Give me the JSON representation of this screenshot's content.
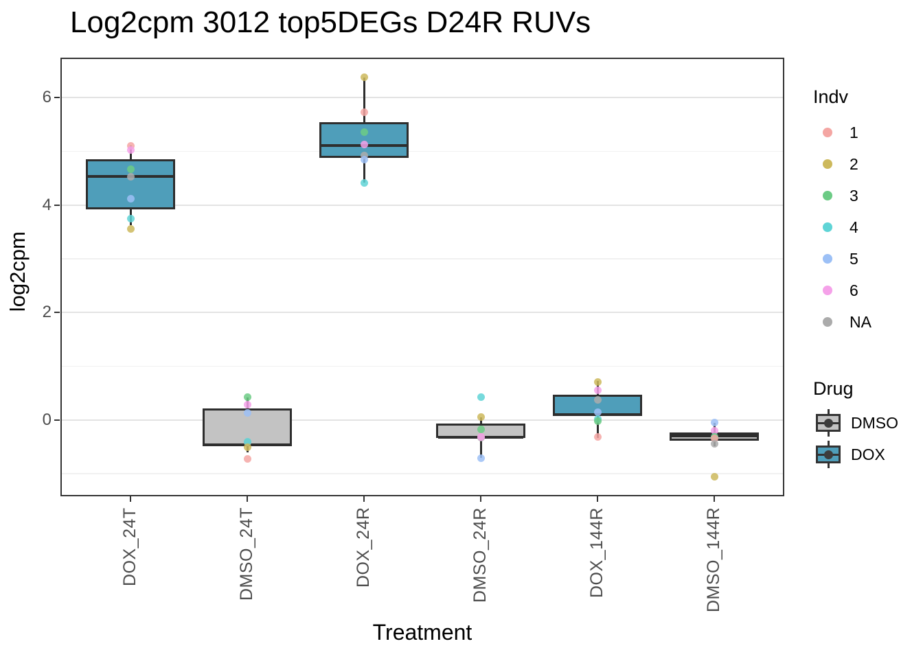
{
  "chart_data": {
    "type": "boxplot",
    "title": "Log2cpm 3012 top5DEGs D24R RUVs",
    "xlabel": "Treatment",
    "ylabel": "log2cpm",
    "ylim": [
      -1.42,
      6.74
    ],
    "yticks": [
      0,
      2,
      4,
      6
    ],
    "yticks_minor": [
      -1,
      1,
      3,
      5
    ],
    "grid": "on",
    "legend_position": "right",
    "categories": [
      "DOX_24T",
      "DMSO_24T",
      "DOX_24R",
      "DMSO_24R",
      "DOX_144R",
      "DMSO_144R"
    ],
    "drug_colors": {
      "DMSO": "#C3C3C3",
      "DOX": "#4F9EBA"
    },
    "indv_colors": {
      "1": "#F4A6A3",
      "2": "#CDB95C",
      "3": "#6CCB85",
      "4": "#5FD4D6",
      "5": "#9CC0F6",
      "6": "#F5A1E9",
      "NA": "#ABABAB"
    },
    "boxes": [
      {
        "category": "DOX_24T",
        "drug": "DOX",
        "q1": 3.92,
        "median": 4.55,
        "q3": 4.85,
        "whisker_low": 3.62,
        "whisker_high": 5.1
      },
      {
        "category": "DMSO_24T",
        "drug": "DMSO",
        "q1": -0.49,
        "median": -0.44,
        "q3": 0.22,
        "whisker_low": -0.6,
        "whisker_high": 0.42
      },
      {
        "category": "DOX_24R",
        "drug": "DOX",
        "q1": 4.88,
        "median": 5.12,
        "q3": 5.54,
        "whisker_low": 4.41,
        "whisker_high": 6.37
      },
      {
        "category": "DMSO_24R",
        "drug": "DMSO",
        "q1": -0.34,
        "median": -0.3,
        "q3": -0.07,
        "whisker_low": -0.71,
        "whisker_high": 0.05
      },
      {
        "category": "DOX_144R",
        "drug": "DOX",
        "q1": 0.07,
        "median": 0.12,
        "q3": 0.47,
        "whisker_low": -0.33,
        "whisker_high": 0.72
      },
      {
        "category": "DMSO_144R",
        "drug": "DMSO",
        "q1": -0.38,
        "median": -0.27,
        "q3": -0.23,
        "whisker_low": -0.49,
        "whisker_high": -0.05
      }
    ],
    "points": [
      {
        "category": "DOX_24T",
        "indv": "1",
        "value": 5.1
      },
      {
        "category": "DOX_24T",
        "indv": "6",
        "value": 5.02
      },
      {
        "category": "DOX_24T",
        "indv": "3",
        "value": 4.67
      },
      {
        "category": "DOX_24T",
        "indv": "NA",
        "value": 4.53
      },
      {
        "category": "DOX_24T",
        "indv": "5",
        "value": 4.11
      },
      {
        "category": "DOX_24T",
        "indv": "4",
        "value": 3.74
      },
      {
        "category": "DOX_24T",
        "indv": "2",
        "value": 3.55
      },
      {
        "category": "DMSO_24T",
        "indv": "3",
        "value": 0.42
      },
      {
        "category": "DMSO_24T",
        "indv": "6",
        "value": 0.29
      },
      {
        "category": "DMSO_24T",
        "indv": "5",
        "value": 0.13
      },
      {
        "category": "DMSO_24T",
        "indv": "NA",
        "value": -0.42
      },
      {
        "category": "DMSO_24T",
        "indv": "4",
        "value": -0.4
      },
      {
        "category": "DMSO_24T",
        "indv": "2",
        "value": -0.51
      },
      {
        "category": "DMSO_24T",
        "indv": "1",
        "value": -0.73
      },
      {
        "category": "DOX_24R",
        "indv": "2",
        "value": 6.37
      },
      {
        "category": "DOX_24R",
        "indv": "1",
        "value": 5.73
      },
      {
        "category": "DOX_24R",
        "indv": "3",
        "value": 5.36
      },
      {
        "category": "DOX_24R",
        "indv": "6",
        "value": 5.12
      },
      {
        "category": "DOX_24R",
        "indv": "NA",
        "value": 4.92
      },
      {
        "category": "DOX_24R",
        "indv": "5",
        "value": 4.85
      },
      {
        "category": "DOX_24R",
        "indv": "4",
        "value": 4.41
      },
      {
        "category": "DMSO_24R",
        "indv": "4",
        "value": 0.42
      },
      {
        "category": "DMSO_24R",
        "indv": "2",
        "value": 0.05
      },
      {
        "category": "DMSO_24R",
        "indv": "3",
        "value": -0.17
      },
      {
        "category": "DMSO_24R",
        "indv": "1",
        "value": -0.31
      },
      {
        "category": "DMSO_24R",
        "indv": "NA",
        "value": -0.33
      },
      {
        "category": "DMSO_24R",
        "indv": "6",
        "value": -0.32
      },
      {
        "category": "DMSO_24R",
        "indv": "5",
        "value": -0.71
      },
      {
        "category": "DOX_144R",
        "indv": "2",
        "value": 0.7
      },
      {
        "category": "DOX_144R",
        "indv": "6",
        "value": 0.55
      },
      {
        "category": "DOX_144R",
        "indv": "NA",
        "value": 0.38
      },
      {
        "category": "DOX_144R",
        "indv": "5",
        "value": 0.14
      },
      {
        "category": "DOX_144R",
        "indv": "4",
        "value": 0.02
      },
      {
        "category": "DOX_144R",
        "indv": "3",
        "value": -0.02
      },
      {
        "category": "DOX_144R",
        "indv": "1",
        "value": -0.32
      },
      {
        "category": "DMSO_144R",
        "indv": "5",
        "value": -0.05
      },
      {
        "category": "DMSO_144R",
        "indv": "6",
        "value": -0.2
      },
      {
        "category": "DMSO_144R",
        "indv": "4",
        "value": -0.31
      },
      {
        "category": "DMSO_144R",
        "indv": "3",
        "value": -0.31
      },
      {
        "category": "DMSO_144R",
        "indv": "1",
        "value": -0.34
      },
      {
        "category": "DMSO_144R",
        "indv": "NA",
        "value": -0.44
      },
      {
        "category": "DMSO_144R",
        "indv": "2",
        "value": -1.05
      }
    ],
    "legend": {
      "indv": {
        "title": "Indv",
        "items": [
          "1",
          "2",
          "3",
          "4",
          "5",
          "6",
          "NA"
        ]
      },
      "drug": {
        "title": "Drug",
        "items": [
          "DMSO",
          "DOX"
        ]
      }
    }
  }
}
